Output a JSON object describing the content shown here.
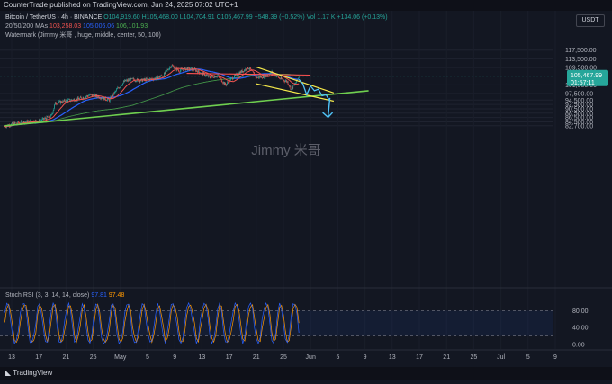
{
  "header": {
    "published_text": "CounterTrade published on TradingView.com, Jun 24, 2025 07:02 UTC+1"
  },
  "legend": {
    "symbol": "Bitcoin / TetherUS · 4h · BINANCE",
    "ohlc": {
      "o": "O104,919.60",
      "h": "H105,468.00",
      "l": "L104,704.91",
      "c": "C105,467.99",
      "change": "+548.39 (+0.52%)",
      "volume": "Vol 1.17 K",
      "vol_change": "+134.06 (+0.13%)"
    },
    "ma": {
      "label": "20/50/200 MAs",
      "ma20": "103,258.03",
      "ma50": "105,006.06",
      "ma200": "106,101.93"
    },
    "watermark_label": "Watermark (Jimmy 米哥 , huge, middle, center, 50, 100)"
  },
  "watermark_text": "Jimmy 米哥",
  "currency_button": "USDT",
  "price_axis": {
    "labels": [
      "117,500.00",
      "113,500.00",
      "109,500.00",
      "101,500.00",
      "97,500.00",
      "94,500.00",
      "92,500.00",
      "90,500.00",
      "88,500.00",
      "86,500.00",
      "84,500.00",
      "82,700.00"
    ],
    "current_price": "105,467.99",
    "countdown": "01:57:11"
  },
  "stoch_rsi": {
    "label": "Stoch RSI (3, 3, 14, 14, close)",
    "k": "97.81",
    "d": "97.48",
    "levels": [
      "80.00",
      "40.00",
      "0.00"
    ]
  },
  "time_axis": {
    "labels": [
      "13",
      "17",
      "21",
      "25",
      "May",
      "5",
      "9",
      "13",
      "17",
      "21",
      "25",
      "Jun",
      "5",
      "9",
      "13",
      "17",
      "21",
      "25",
      "Jul",
      "5",
      "9"
    ]
  },
  "footer": {
    "brand": "TradingView"
  },
  "colors": {
    "background": "#131722",
    "up": "#26a69a",
    "down": "#ef5350",
    "ma20": "#ef5350",
    "ma50": "#2962ff",
    "ma200": "#4caf50",
    "trendline": "#6fcf4f",
    "channel": "#f5e94a",
    "projection": "#4fc3f7",
    "stoch_k": "#2962ff",
    "stoch_d": "#ff9800"
  },
  "chart_data": {
    "type": "candlestick",
    "title": "Bitcoin / TetherUS · 4h · BINANCE",
    "ylim": [
      81500,
      120000
    ],
    "anchors": [
      [
        "Apr 9",
        82500
      ],
      [
        "Apr 11",
        83500
      ],
      [
        "Apr 14",
        84500
      ],
      [
        "Apr 18",
        85000
      ],
      [
        "Apr 21",
        87200
      ],
      [
        "Apr 22",
        93000
      ],
      [
        "Apr 25",
        94300
      ],
      [
        "Apr 28",
        95000
      ],
      [
        "May 1",
        96800
      ],
      [
        "May 3",
        96200
      ],
      [
        "May 6",
        94500
      ],
      [
        "May 8",
        99500
      ],
      [
        "May 10",
        103200
      ],
      [
        "May 12",
        104000
      ],
      [
        "May 14",
        103500
      ],
      [
        "May 18",
        104500
      ],
      [
        "May 20",
        106000
      ],
      [
        "May 22",
        110500
      ],
      [
        "May 24",
        108000
      ],
      [
        "May 26",
        109000
      ],
      [
        "May 28",
        108500
      ],
      [
        "Jun 1",
        105000
      ],
      [
        "Jun 3",
        105800
      ],
      [
        "Jun 5",
        101500
      ],
      [
        "Jun 7",
        105000
      ],
      [
        "Jun 9",
        107500
      ],
      [
        "Jun 11",
        109500
      ],
      [
        "Jun 13",
        104800
      ],
      [
        "Jun 15",
        105500
      ],
      [
        "Jun 17",
        107300
      ],
      [
        "Jun 19",
        104500
      ],
      [
        "Jun 21",
        103000
      ],
      [
        "Jun 22",
        99500
      ],
      [
        "Jun 23",
        102000
      ],
      [
        "Jun 24",
        105467.99
      ]
    ]
  }
}
